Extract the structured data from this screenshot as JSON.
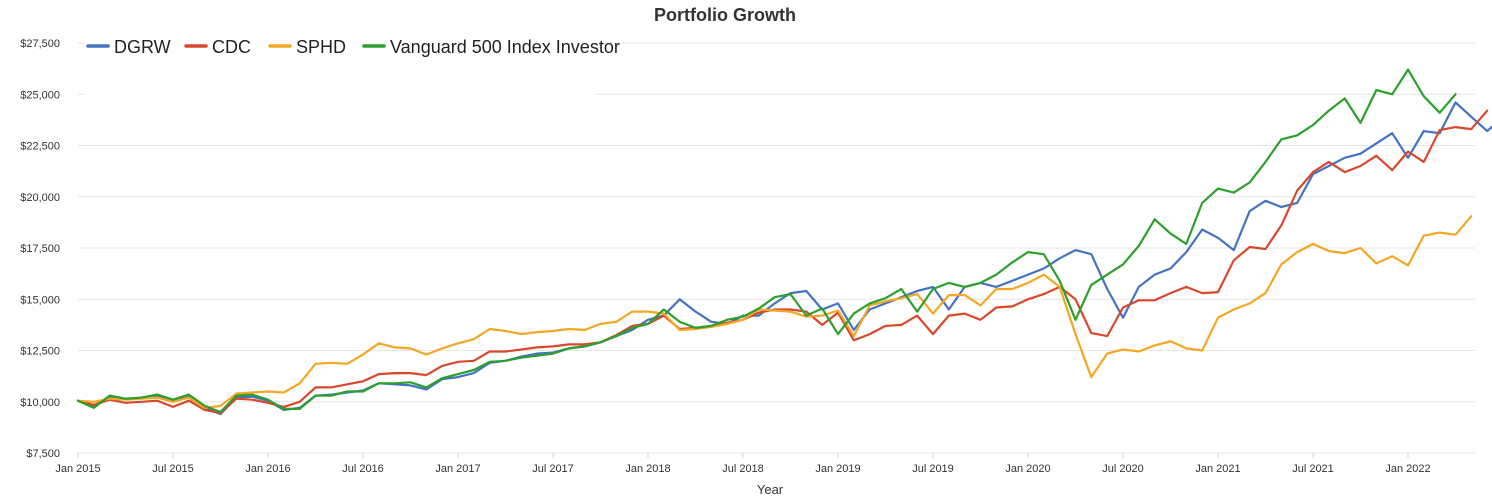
{
  "chart_data": {
    "type": "line",
    "title": "Portfolio Growth",
    "xlabel": "Year",
    "ylabel": "",
    "ylim": [
      7500,
      27500
    ],
    "y_ticks": [
      "$7,500",
      "$10,000",
      "$12,500",
      "$15,000",
      "$17,500",
      "$20,000",
      "$22,500",
      "$25,000",
      "$27,500"
    ],
    "y_tick_values": [
      7500,
      10000,
      12500,
      15000,
      17500,
      20000,
      22500,
      25000,
      27500
    ],
    "x_ticks": [
      "Jan 2015",
      "Jul 2015",
      "Jan 2016",
      "Jul 2016",
      "Jan 2017",
      "Jul 2017",
      "Jan 2018",
      "Jul 2018",
      "Jan 2019",
      "Jul 2019",
      "Jan 2020",
      "Jul 2020",
      "Jan 2021",
      "Jul 2021",
      "Jan 2022"
    ],
    "x_start": "Jan 2015",
    "x_end": "Apr 2022",
    "grid": true,
    "legend_position": "top-left",
    "series": [
      {
        "name": "DGRW",
        "color": "#4472c4",
        "values": [
          10050,
          9750,
          10250,
          10120,
          10180,
          10300,
          10100,
          10250,
          9700,
          9400,
          10200,
          10250,
          10050,
          9600,
          9700,
          10300,
          10350,
          10450,
          10550,
          10900,
          10850,
          10800,
          10600,
          11100,
          11200,
          11400,
          11900,
          12000,
          12200,
          12350,
          12400,
          12600,
          12700,
          12900,
          13200,
          13500,
          14000,
          14200,
          15000,
          14400,
          13900,
          13800,
          14200,
          14200,
          14800,
          15300,
          15400,
          14500,
          14800,
          13500,
          14500,
          14800,
          15100,
          15400,
          15600,
          14500,
          15600,
          15800,
          15600,
          15900,
          16200,
          16500,
          17000,
          17400,
          17200,
          15500,
          14100,
          15600,
          16200,
          16500,
          17300,
          18400,
          18000,
          17400,
          19300,
          19800,
          19500,
          19700,
          21100,
          21500,
          21900,
          22100,
          22600,
          23100,
          21900,
          23200,
          23100,
          24600,
          23900,
          23200,
          23900
        ]
      },
      {
        "name": "CDC",
        "color": "#d9482b",
        "values": [
          10050,
          9850,
          10100,
          9950,
          10000,
          10050,
          9750,
          10050,
          9600,
          9450,
          10150,
          10100,
          9950,
          9750,
          10000,
          10700,
          10700,
          10850,
          11000,
          11350,
          11400,
          11400,
          11300,
          11750,
          11950,
          12000,
          12450,
          12450,
          12550,
          12650,
          12700,
          12800,
          12800,
          12900,
          13250,
          13700,
          13800,
          14200,
          13550,
          13600,
          13700,
          13850,
          14000,
          14350,
          14500,
          14500,
          14400,
          13750,
          14350,
          13000,
          13300,
          13700,
          13750,
          14200,
          13300,
          14200,
          14300,
          14000,
          14600,
          14650,
          15000,
          15250,
          15600,
          15000,
          13350,
          13200,
          14600,
          14950,
          14950,
          15300,
          15600,
          15300,
          15350,
          16900,
          17550,
          17450,
          18600,
          20300,
          21200,
          21700,
          21200,
          21500,
          22000,
          21300,
          22200,
          21700,
          23250,
          23400,
          23300,
          24200
        ]
      },
      {
        "name": "SPHD",
        "color": "#f5a623",
        "values": [
          10050,
          10000,
          10150,
          10100,
          10150,
          10200,
          10000,
          10200,
          9700,
          9800,
          10400,
          10450,
          10500,
          10450,
          10900,
          11850,
          11900,
          11850,
          12300,
          12850,
          12650,
          12600,
          12300,
          12600,
          12850,
          13050,
          13550,
          13450,
          13300,
          13400,
          13450,
          13550,
          13500,
          13800,
          13900,
          14400,
          14400,
          14300,
          13500,
          13550,
          13650,
          13800,
          14000,
          14500,
          14450,
          14400,
          14150,
          14200,
          14450,
          13200,
          14700,
          14900,
          15050,
          15250,
          14300,
          15200,
          15200,
          14700,
          15500,
          15500,
          15800,
          16200,
          15600,
          13300,
          11200,
          12350,
          12550,
          12450,
          12750,
          12950,
          12600,
          12500,
          14100,
          14500,
          14800,
          15300,
          16700,
          17300,
          17700,
          17350,
          17250,
          17500,
          16750,
          17100,
          16650,
          18100,
          18250,
          18150,
          19050
        ]
      },
      {
        "name": "Vanguard 500 Index Investor",
        "color": "#2ca02c",
        "values": [
          10050,
          9700,
          10300,
          10150,
          10200,
          10350,
          10100,
          10350,
          9800,
          9500,
          10300,
          10350,
          10100,
          9650,
          9650,
          10300,
          10300,
          10500,
          10500,
          10900,
          10900,
          10950,
          10700,
          11150,
          11350,
          11550,
          11950,
          12000,
          12150,
          12250,
          12350,
          12600,
          12700,
          12900,
          13200,
          13600,
          13800,
          14500,
          13900,
          13600,
          13700,
          14000,
          14150,
          14550,
          15100,
          15250,
          14200,
          14550,
          13300,
          14300,
          14800,
          15050,
          15500,
          14400,
          15500,
          15800,
          15600,
          15800,
          16200,
          16800,
          17300,
          17200,
          15900,
          14000,
          15700,
          16200,
          16700,
          17600,
          18900,
          18200,
          17700,
          19700,
          20400,
          20200,
          20700,
          21700,
          22800,
          23000,
          23500,
          24200,
          24800,
          23600,
          25200,
          25000,
          26200,
          24900,
          24100,
          25000
        ]
      }
    ]
  }
}
